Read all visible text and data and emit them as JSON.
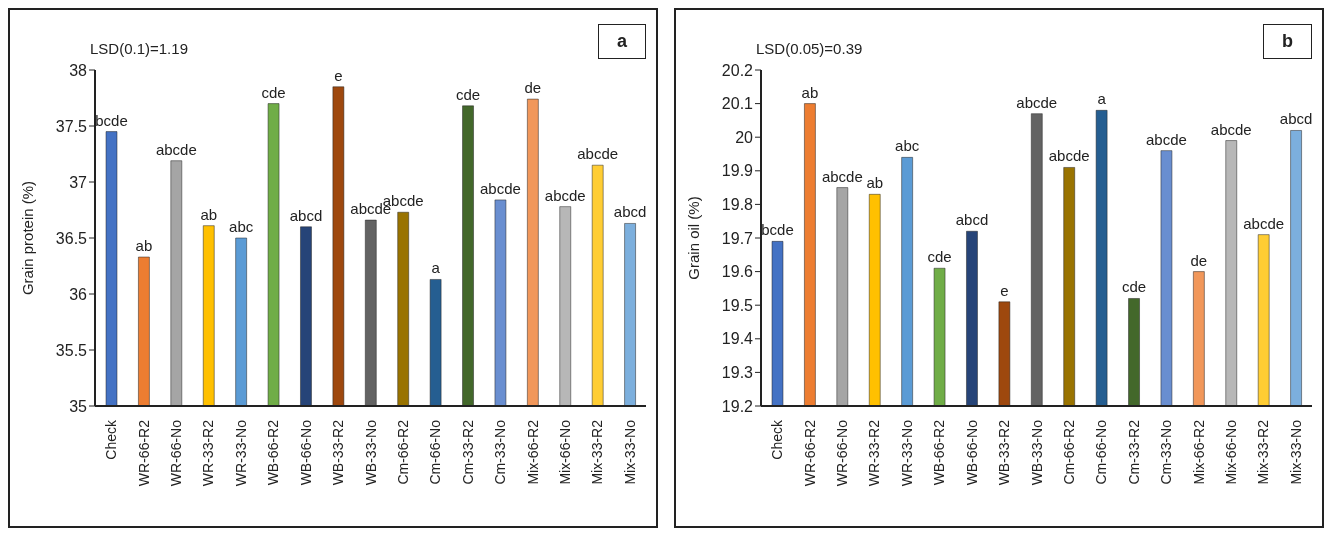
{
  "chart_data": [
    {
      "type": "bar",
      "ylabel": "Grain protein (%)",
      "annotations": [
        "LSD(0.1)=1.19",
        "a"
      ],
      "categories": [
        "Check",
        "WR-66-R2",
        "WR-66-No",
        "WR-33-R2",
        "WR-33-No",
        "WB-66-R2",
        "WB-66-No",
        "WB-33-R2",
        "WB-33-No",
        "Cm-66-R2",
        "Cm-66-No",
        "Cm-33-R2",
        "Cm-33-No",
        "Mix-66-R2",
        "Mix-66-No",
        "Mix-33-R2",
        "Mix-33-No"
      ],
      "values": [
        37.45,
        36.33,
        37.19,
        36.61,
        36.5,
        37.7,
        36.6,
        37.85,
        36.66,
        36.73,
        36.13,
        37.68,
        36.84,
        37.74,
        36.78,
        37.15,
        36.63
      ],
      "colors": [
        "#4472c4",
        "#ed7d31",
        "#a5a5a5",
        "#ffc000",
        "#5b9bd5",
        "#70ad47",
        "#264478",
        "#9e480e",
        "#636363",
        "#997300",
        "#255e91",
        "#43682b",
        "#698ed0",
        "#f1975a",
        "#b7b7b7",
        "#ffcd33",
        "#7cafdd"
      ],
      "value_labels": [
        "bcde",
        "ab",
        "abcde",
        "ab",
        "abc",
        "cde",
        "abcd",
        "e",
        "abcde",
        "abcde",
        "a",
        "cde",
        "abcde",
        "de",
        "abcde",
        "abcde",
        "abcd"
      ],
      "ylim": [
        35,
        38
      ],
      "yticks": [
        35,
        35.5,
        36,
        36.5,
        37,
        37.5,
        38
      ],
      "grid": false,
      "legend": false
    },
    {
      "type": "bar",
      "ylabel": "Grain oil (%)",
      "annotations": [
        "LSD(0.05)=0.39",
        "b"
      ],
      "categories": [
        "Check",
        "WR-66-R2",
        "WR-66-No",
        "WR-33-R2",
        "WR-33-No",
        "WB-66-R2",
        "WB-66-No",
        "WB-33-R2",
        "WB-33-No",
        "Cm-66-R2",
        "Cm-66-No",
        "Cm-33-R2",
        "Cm-33-No",
        "Mix-66-R2",
        "Mix-66-No",
        "Mix-33-R2",
        "Mix-33-No"
      ],
      "values": [
        19.69,
        20.1,
        19.85,
        19.83,
        19.94,
        19.61,
        19.72,
        19.51,
        20.07,
        19.91,
        20.08,
        19.52,
        19.96,
        19.6,
        19.99,
        19.71,
        20.02
      ],
      "colors": [
        "#4472c4",
        "#ed7d31",
        "#a5a5a5",
        "#ffc000",
        "#5b9bd5",
        "#70ad47",
        "#264478",
        "#9e480e",
        "#636363",
        "#997300",
        "#255e91",
        "#43682b",
        "#698ed0",
        "#f1975a",
        "#b7b7b7",
        "#ffcd33",
        "#7cafdd"
      ],
      "value_labels": [
        "bcde",
        "ab",
        "abcde",
        "ab",
        "abc",
        "cde",
        "abcd",
        "e",
        "abcde",
        "abcde",
        "a",
        "cde",
        "abcde",
        "de",
        "abcde",
        "abcde",
        "abcd"
      ],
      "ylim": [
        19.2,
        20.2
      ],
      "yticks": [
        19.2,
        19.3,
        19.4,
        19.5,
        19.6,
        19.7,
        19.8,
        19.9,
        20,
        20.1,
        20.2
      ],
      "grid": false,
      "legend": false
    }
  ]
}
